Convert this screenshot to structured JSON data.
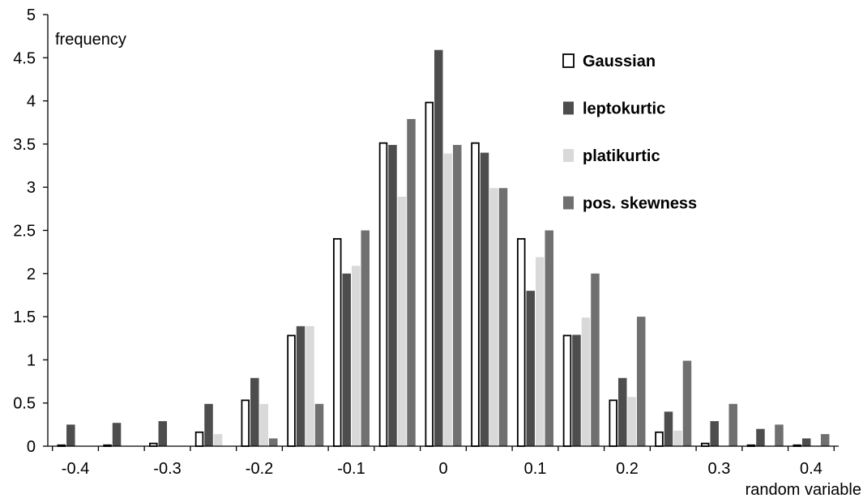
{
  "chart_data": {
    "type": "bar",
    "xlabel": "random variable",
    "ylabel": "frequency",
    "ylim": [
      0,
      5
    ],
    "y_ticks": [
      "0",
      "0.5",
      "1",
      "1.5",
      "2",
      "2.5",
      "3",
      "3.5",
      "4",
      "4.5",
      "5"
    ],
    "x_ticks": [
      "-0.4",
      "-0.3",
      "-0.2",
      "-0.1",
      "0",
      "0.1",
      "0.2",
      "0.3",
      "0.4"
    ],
    "categories": [
      -0.4,
      -0.35,
      -0.3,
      -0.25,
      -0.2,
      -0.15,
      -0.1,
      -0.05,
      0,
      0.05,
      0.1,
      0.15,
      0.2,
      0.25,
      0.3,
      0.35,
      0.4
    ],
    "grid": false,
    "legend_placement": "top-right",
    "series": [
      {
        "name": "Gaussian",
        "color": "#ffffff",
        "stroke": "#000000",
        "values": [
          0.02,
          0.02,
          0.04,
          0.17,
          0.54,
          1.29,
          2.41,
          3.52,
          3.99,
          3.52,
          2.41,
          1.29,
          0.54,
          0.17,
          0.04,
          0.02,
          0.02
        ]
      },
      {
        "name": "leptokurtic",
        "color": "#4d4d4d",
        "values": [
          0.25,
          0.27,
          0.29,
          0.49,
          0.79,
          1.39,
          2.0,
          3.49,
          4.59,
          3.4,
          1.8,
          1.29,
          0.79,
          0.4,
          0.29,
          0.2,
          0.09
        ]
      },
      {
        "name": "platikurtic",
        "color": "#d9d9d9",
        "values": [
          0,
          0,
          0,
          0.14,
          0.49,
          1.39,
          2.09,
          2.89,
          3.39,
          2.99,
          2.19,
          1.49,
          0.57,
          0.18,
          0,
          0,
          0
        ]
      },
      {
        "name": "pos. skewness",
        "color": "#707070",
        "values": [
          0,
          0,
          0,
          0,
          0.09,
          0.49,
          2.5,
          3.79,
          3.49,
          2.99,
          2.5,
          2.0,
          1.5,
          0.99,
          0.49,
          0.25,
          0.14
        ]
      }
    ]
  }
}
